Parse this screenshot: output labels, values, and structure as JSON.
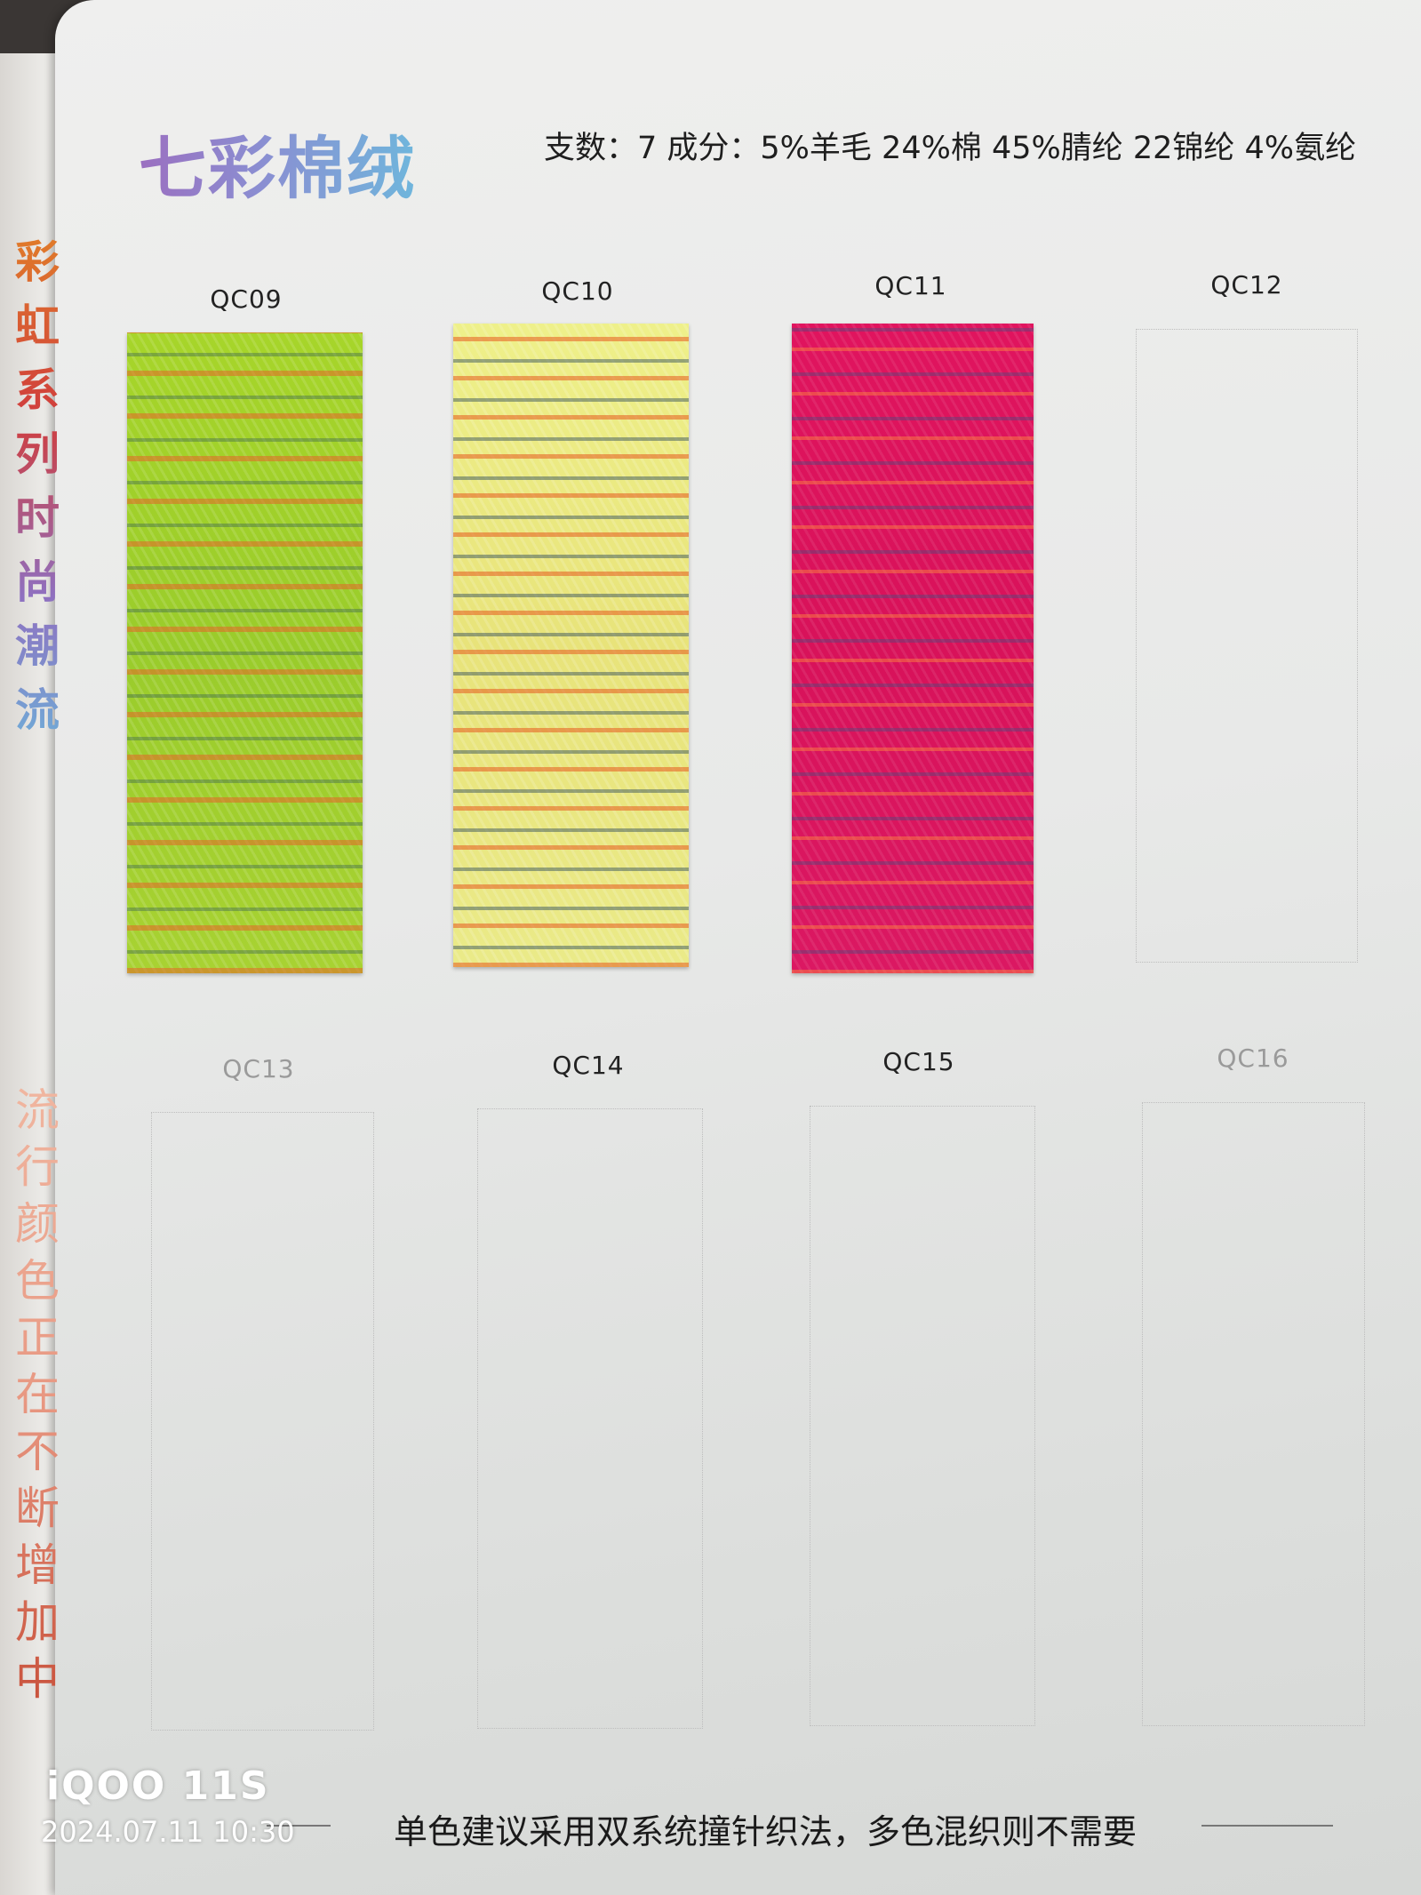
{
  "header": {
    "title": "七彩棉绒",
    "spec": "支数：7 成分：5%羊毛 24%棉 45%腈纶 22锦纶 4%氨纶"
  },
  "swatches": [
    {
      "label": "QC09"
    },
    {
      "label": "QC10"
    },
    {
      "label": "QC11"
    },
    {
      "label": "QC12"
    },
    {
      "label": "QC13"
    },
    {
      "label": "QC14"
    },
    {
      "label": "QC15"
    },
    {
      "label": "QC16"
    }
  ],
  "side_text": [
    "彩虹系列时尚潮流",
    "流行颜色正在不断增加中"
  ],
  "footer": "单色建议采用双系统撞针织法，多色混织则不需要",
  "watermark": {
    "brand": "iQOO 11S",
    "timestamp": "2024.07.11 10:30"
  }
}
